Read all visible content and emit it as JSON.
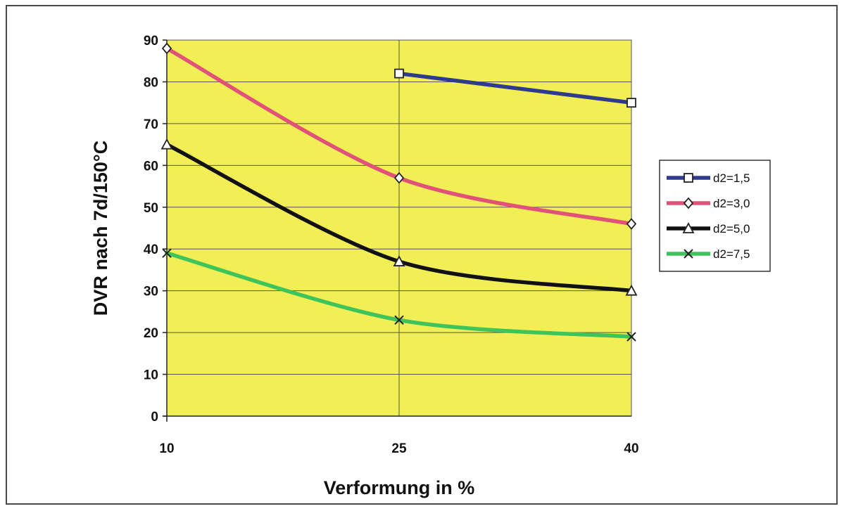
{
  "chart_data": {
    "type": "line",
    "title": "",
    "xlabel": "Verformung in %",
    "ylabel": "DVR nach 7d/150°C",
    "x_categories": [
      "10",
      "25",
      "40"
    ],
    "ylim": [
      0,
      90
    ],
    "yticks": [
      0,
      10,
      20,
      30,
      40,
      50,
      60,
      70,
      80,
      90
    ],
    "grid": "horizontal-and-vertical",
    "plot_background": "#f2ee55",
    "legend_position": "right",
    "series": [
      {
        "name": "d2=1,5",
        "color": "#2e3a8c",
        "marker": "square",
        "values": [
          null,
          82,
          75
        ]
      },
      {
        "name": "d2=3,0",
        "color": "#e0527a",
        "marker": "diamond",
        "values": [
          88,
          57,
          46
        ]
      },
      {
        "name": "d2=5,0",
        "color": "#111111",
        "marker": "triangle",
        "values": [
          65,
          37,
          30
        ]
      },
      {
        "name": "d2=7,5",
        "color": "#3ec45a",
        "marker": "cross",
        "values": [
          39,
          23,
          19
        ]
      }
    ]
  }
}
